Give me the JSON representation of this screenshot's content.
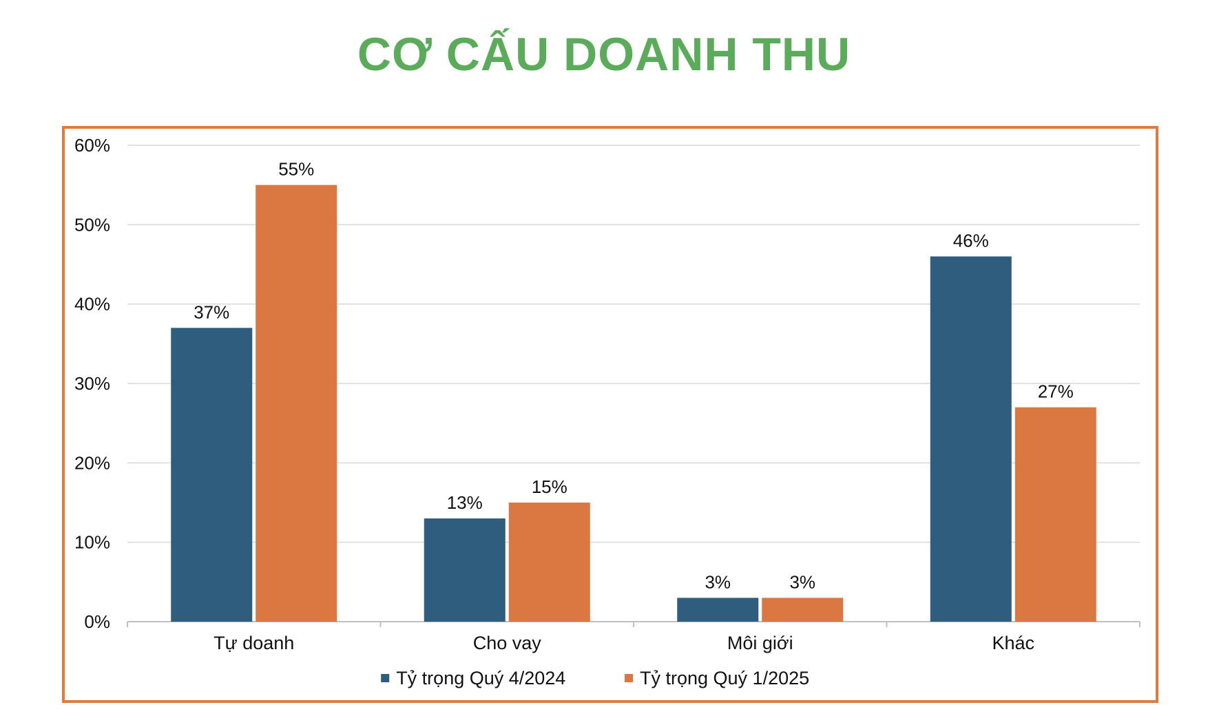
{
  "title": "CƠ CẤU DOANH THU",
  "colors": {
    "title": "#5aac5a",
    "frame": "#e07b3f",
    "grid": "#d9d9d9",
    "axis": "#bfbfbf"
  },
  "chart_data": {
    "type": "bar",
    "categories": [
      "Tự doanh",
      "Cho vay",
      "Môi giới",
      "Khác"
    ],
    "series": [
      {
        "name": "Tỷ trọng Quý 4/2024",
        "color": "#2f5d7e",
        "values": [
          37,
          13,
          3,
          46
        ],
        "labels": [
          "37%",
          "13%",
          "3%",
          "46%"
        ]
      },
      {
        "name": "Tỷ trọng Quý 1/2025",
        "color": "#db7842",
        "values": [
          55,
          15,
          3,
          27
        ],
        "labels": [
          "55%",
          "15%",
          "3%",
          "27%"
        ]
      }
    ],
    "ylim": [
      0,
      60
    ],
    "yticks": [
      0,
      10,
      20,
      30,
      40,
      50,
      60
    ],
    "ytick_labels": [
      "0%",
      "10%",
      "20%",
      "30%",
      "40%",
      "50%",
      "60%"
    ],
    "grid": true,
    "legend_position": "bottom"
  }
}
